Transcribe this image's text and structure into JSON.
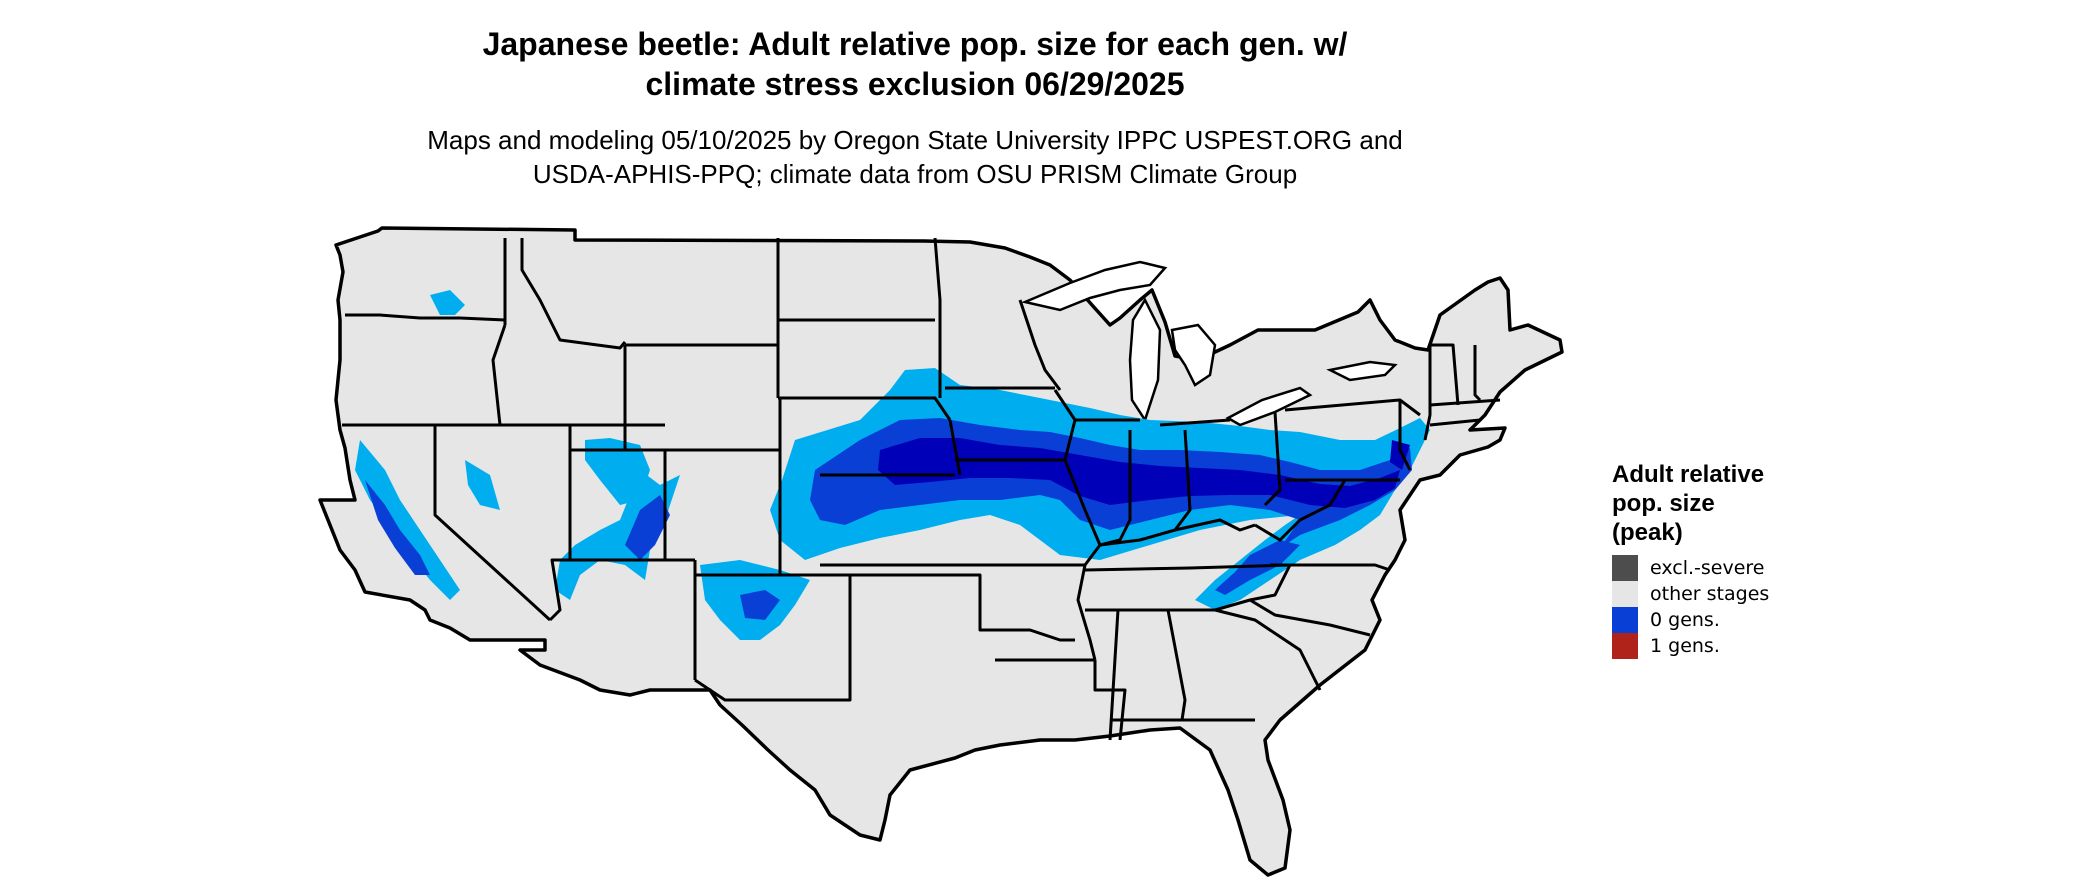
{
  "title": {
    "line1": "Japanese beetle: Adult relative pop. size for each gen. w/",
    "line2": "climate stress exclusion 06/29/2025"
  },
  "subtitle": {
    "line1": "Maps and modeling 05/10/2025 by Oregon State University IPPC USPEST.ORG and",
    "line2": "USDA-APHIS-PPQ; climate data from OSU PRISM Climate Group"
  },
  "legend": {
    "title_lines": [
      "Adult relative",
      "pop. size",
      "(peak)"
    ],
    "items": [
      {
        "label": "excl.-severe",
        "color": "#4d4d4d"
      },
      {
        "label": "other stages",
        "color": "#e6e6e6"
      },
      {
        "label": "0 gens.",
        "color": "#0a3fd6"
      },
      {
        "label": "1 gens.",
        "color": "#b0231b"
      }
    ]
  },
  "map": {
    "land_color": "#e6e6e6",
    "border_color": "#000000",
    "population_colors": {
      "light": "#00aeef",
      "mid": "#0a3fd6",
      "dark": "#0000b8"
    }
  }
}
